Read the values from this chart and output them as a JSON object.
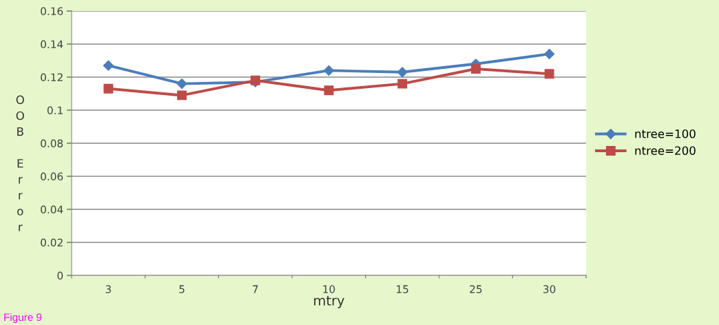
{
  "chart_data": {
    "type": "line",
    "xlabel": "mtry",
    "ylabel": "OOB Error",
    "categories": [
      "3",
      "5",
      "7",
      "10",
      "15",
      "25",
      "30"
    ],
    "series": [
      {
        "name": "ntree=100",
        "color": "#4a7ebb",
        "marker": "diamond",
        "values": [
          0.127,
          0.116,
          0.117,
          0.124,
          0.123,
          0.128,
          0.134
        ]
      },
      {
        "name": "ntree=200",
        "color": "#be4b48",
        "marker": "square",
        "values": [
          0.113,
          0.109,
          0.118,
          0.112,
          0.116,
          0.125,
          0.122
        ]
      }
    ],
    "ylim": [
      0,
      0.16
    ],
    "yticks": [
      0,
      {
        "value": 0.02,
        "label": "0.02"
      },
      {
        "value": 0.04,
        "label": "0.04"
      },
      {
        "value": 0.06,
        "label": "0.06"
      },
      {
        "value": 0.08,
        "label": "0.08"
      },
      {
        "value": 0.1,
        "label": "0.1"
      },
      {
        "value": 0.12,
        "label": "0.12"
      },
      {
        "value": 0.14,
        "label": "0.14"
      },
      {
        "value": 0.16,
        "label": "0.16"
      }
    ],
    "grid": "y",
    "legend": "right",
    "line_style": "solid",
    "annotations": [
      "Figure 9"
    ]
  }
}
